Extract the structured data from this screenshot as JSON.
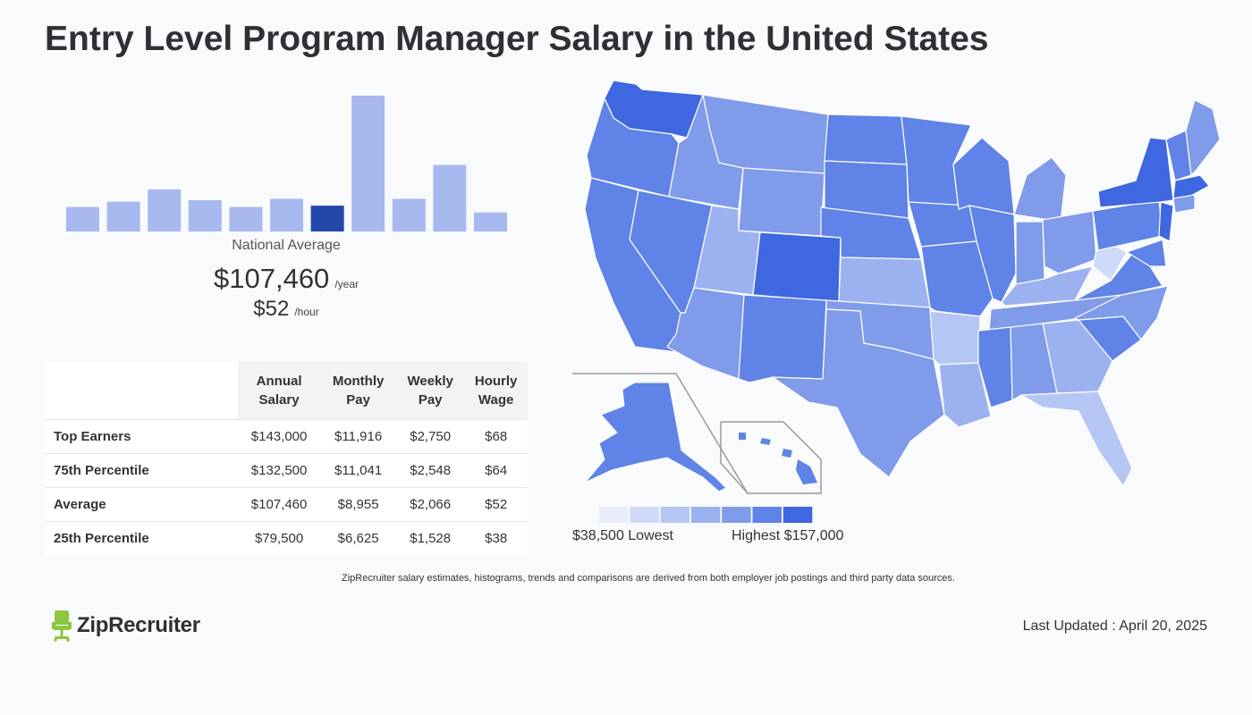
{
  "header": {
    "title": "Entry Level Program Manager Salary in the United States"
  },
  "chart_data": [
    {
      "type": "bar",
      "values": [
        18,
        22,
        31,
        23,
        18,
        24,
        19,
        100,
        24,
        49,
        14
      ],
      "highlight_index": 6,
      "ylim": [
        0,
        100
      ],
      "colors": {
        "bar": "#a8b9f0",
        "highlight": "#2447ab"
      }
    },
    {
      "type": "choropleth",
      "title": "",
      "scale_colors": [
        "#e8edfb",
        "#cfd9f8",
        "#b6c6f4",
        "#9cb2f0",
        "#7f9bea",
        "#5f83e6",
        "#3e67e0"
      ],
      "colors": {
        "state_border": "#ffffff",
        "inset_frame": "#9a9a9a"
      }
    }
  ],
  "summary": {
    "national_label": "National Average",
    "annual": "$107,460",
    "annual_unit": "/year",
    "hourly": "$52",
    "hourly_unit": "/hour"
  },
  "table": {
    "headers": {
      "annual": [
        "Annual",
        "Salary"
      ],
      "monthly": [
        "Monthly",
        "Pay"
      ],
      "weekly": [
        "Weekly",
        "Pay"
      ],
      "hourly": [
        "Hourly",
        "Wage"
      ]
    },
    "rows": [
      {
        "label": "Top Earners",
        "annual": "$143,000",
        "monthly": "$11,916",
        "weekly": "$2,750",
        "hourly": "$68"
      },
      {
        "label": "75th Percentile",
        "annual": "$132,500",
        "monthly": "$11,041",
        "weekly": "$2,548",
        "hourly": "$64"
      },
      {
        "label": "Average",
        "annual": "$107,460",
        "monthly": "$8,955",
        "weekly": "$2,066",
        "hourly": "$52"
      },
      {
        "label": "25th Percentile",
        "annual": "$79,500",
        "monthly": "$6,625",
        "weekly": "$1,528",
        "hourly": "$38"
      }
    ]
  },
  "legend": {
    "low_label": "$38,500 Lowest",
    "high_label": "Highest $157,000"
  },
  "footer": {
    "note": "ZipRecruiter salary estimates, histograms, trends and comparisons are derived from both employer job postings and third party data sources.",
    "logo_text": "ZipRecruiter",
    "updated": "Last Updated : April 20, 2025",
    "logo_color": "#8dc63f"
  }
}
